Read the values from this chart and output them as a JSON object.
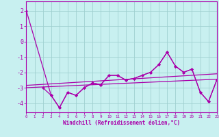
{
  "bg_color": "#c8f0f0",
  "grid_color": "#a0d0d0",
  "line_color": "#aa00aa",
  "xlabel": "Windchill (Refroidissement éolien,°C)",
  "xlim": [
    0,
    23
  ],
  "ylim": [
    -4.6,
    2.6
  ],
  "yticks": [
    -4,
    -3,
    -2,
    -1,
    0,
    1,
    2
  ],
  "line1_x": [
    0,
    3,
    4,
    5,
    6,
    7,
    8,
    9,
    10,
    11,
    12,
    13,
    15,
    16,
    17,
    18,
    19,
    20,
    21,
    22,
    23
  ],
  "line1_y": [
    2.0,
    -3.5,
    -4.3,
    -3.3,
    -3.5,
    -3.0,
    -2.7,
    -2.8,
    -2.2,
    -2.2,
    -2.5,
    -2.4,
    -2.0,
    -1.5,
    -0.7,
    -1.6,
    -2.0,
    -1.8,
    -3.3,
    -3.9,
    -2.5
  ],
  "line2_x": [
    2,
    3,
    4,
    5,
    6,
    7,
    8,
    9,
    10,
    11,
    12,
    13,
    14,
    15,
    16,
    17,
    18,
    19,
    20,
    21,
    22,
    23
  ],
  "line2_y": [
    -3.0,
    -3.5,
    -4.3,
    -3.3,
    -3.5,
    -3.0,
    -2.7,
    -2.8,
    -2.2,
    -2.2,
    -2.5,
    -2.4,
    -2.2,
    -2.0,
    -1.5,
    -0.7,
    -1.6,
    -2.0,
    -1.8,
    -3.3,
    -3.9,
    -2.5
  ],
  "trend1_x": [
    0,
    23
  ],
  "trend1_y": [
    -2.85,
    -2.1
  ],
  "trend2_x": [
    0,
    23
  ],
  "trend2_y": [
    -3.0,
    -2.45
  ],
  "lw": 0.9,
  "ms": 2.5
}
